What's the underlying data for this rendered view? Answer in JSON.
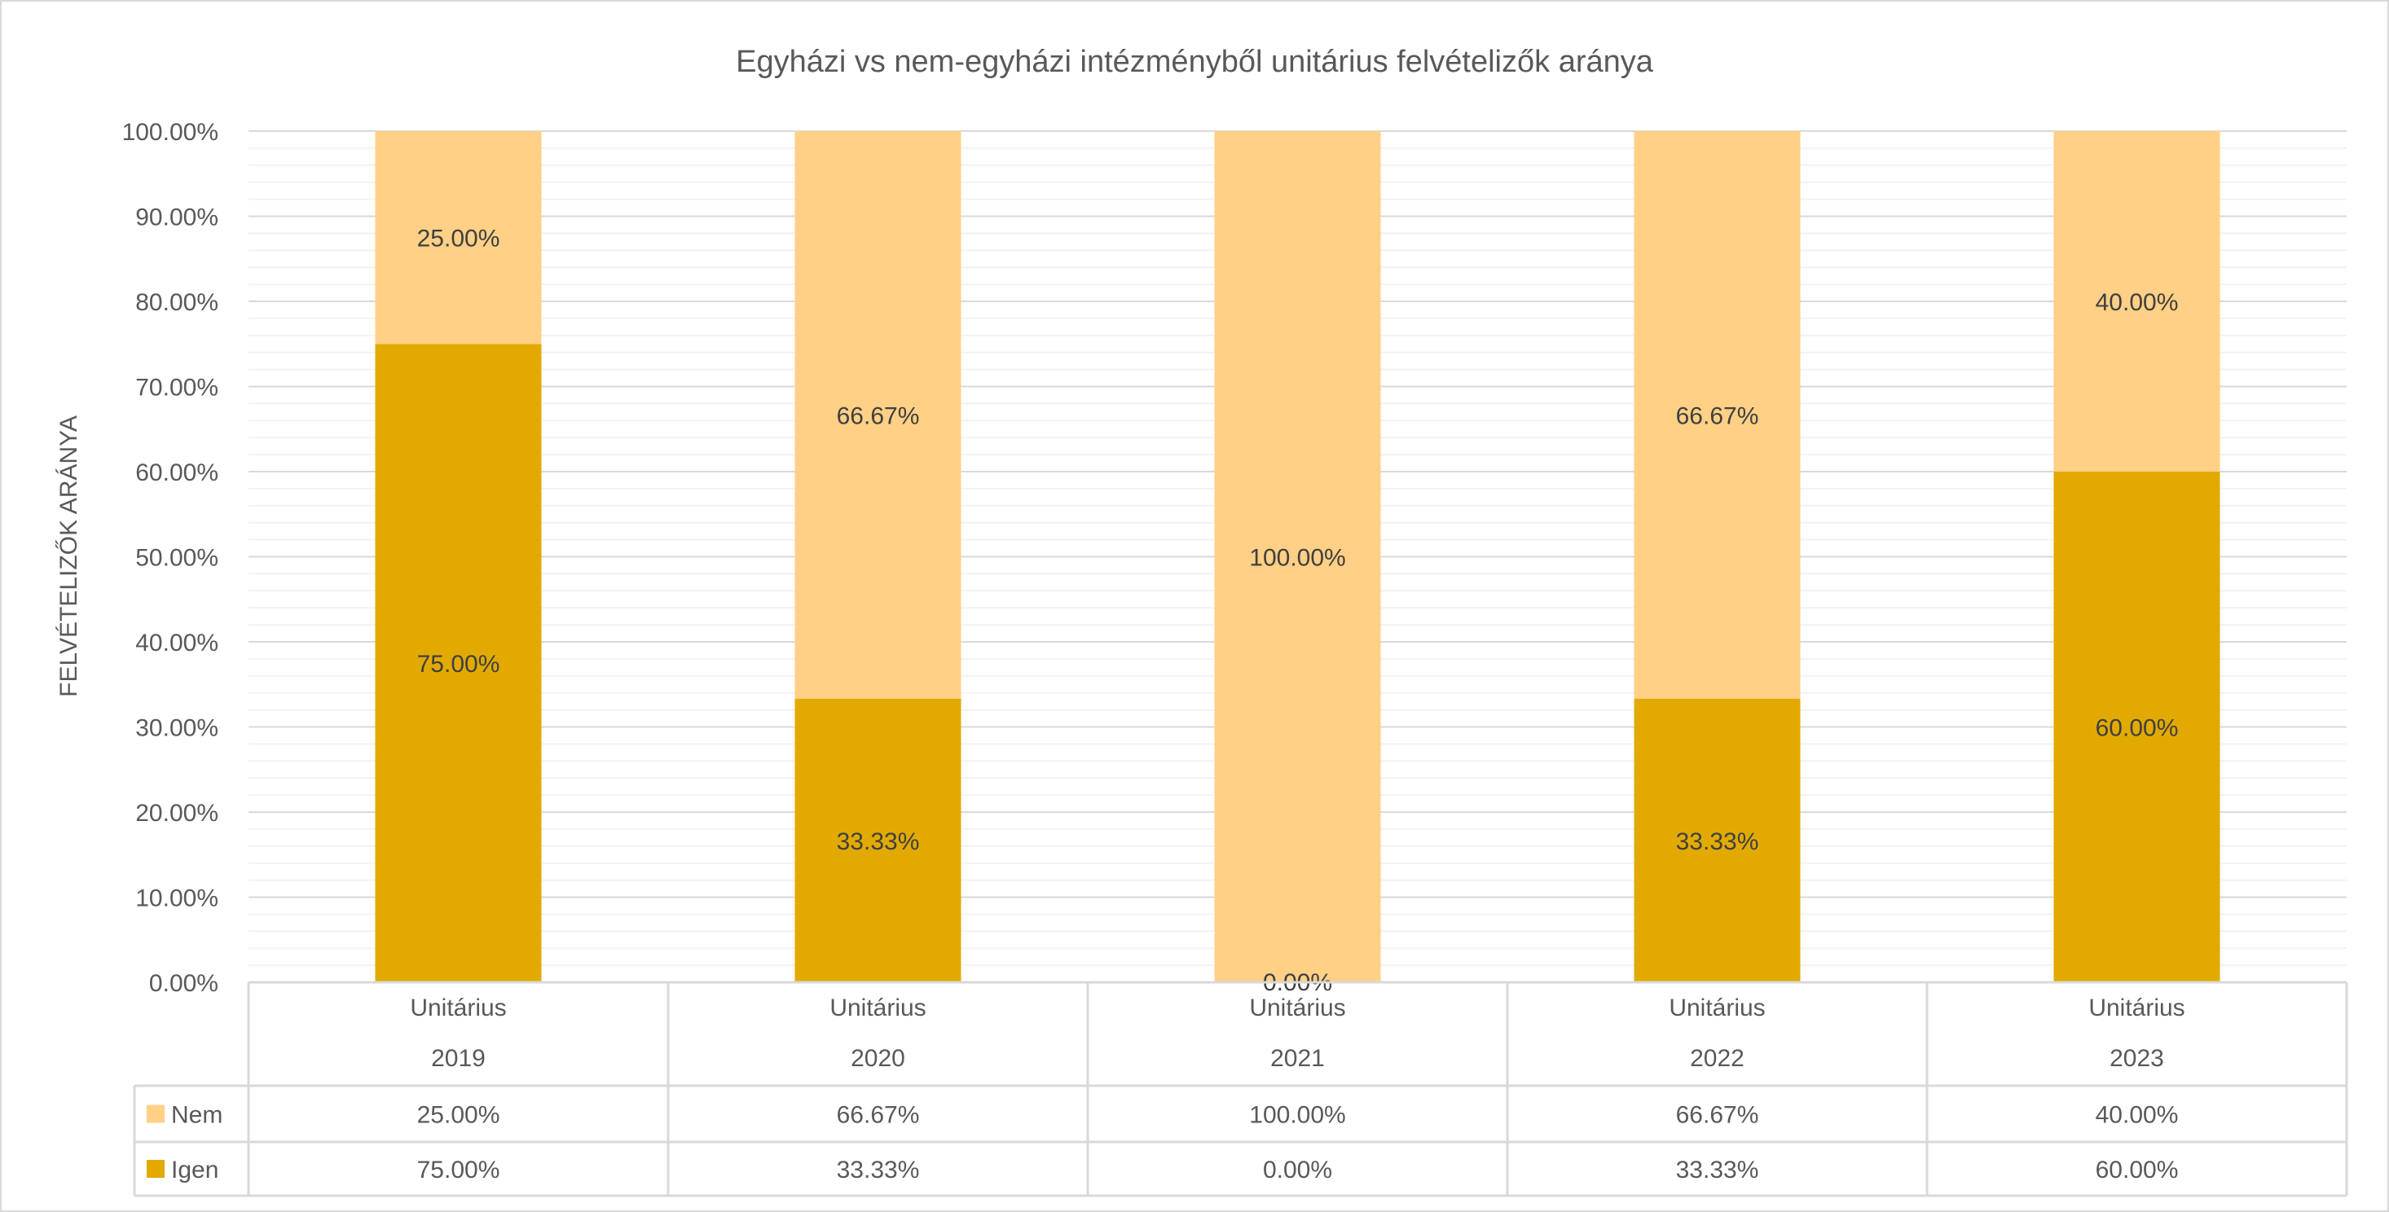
{
  "chart_data": {
    "type": "bar",
    "stacked": true,
    "title": "Egyházi vs nem-egyházi intézményből unitárius felvételizők aránya",
    "xlabel": "",
    "ylabel": "FELVÉTELIZŐK ARÁNYA",
    "ylim": [
      0,
      100
    ],
    "y_ticks": [
      "0.00%",
      "10.00%",
      "20.00%",
      "30.00%",
      "40.00%",
      "50.00%",
      "60.00%",
      "70.00%",
      "80.00%",
      "90.00%",
      "100.00%"
    ],
    "grid": {
      "major": true,
      "minor": true
    },
    "categories": [
      {
        "group": "Unitárius",
        "year": "2019"
      },
      {
        "group": "Unitárius",
        "year": "2020"
      },
      {
        "group": "Unitárius",
        "year": "2021"
      },
      {
        "group": "Unitárius",
        "year": "2022"
      },
      {
        "group": "Unitárius",
        "year": "2023"
      }
    ],
    "series": [
      {
        "name": "Igen",
        "color": "#E2AA00",
        "values": [
          75.0,
          33.33,
          0.0,
          33.33,
          60.0
        ],
        "labels": [
          "75.00%",
          "33.33%",
          "0.00%",
          "33.33%",
          "60.00%"
        ]
      },
      {
        "name": "Nem",
        "color": "#FFD085",
        "values": [
          25.0,
          66.67,
          100.0,
          66.67,
          40.0
        ],
        "labels": [
          "25.00%",
          "66.67%",
          "100.00%",
          "66.67%",
          "40.00%"
        ]
      }
    ],
    "legend": "data-table"
  }
}
